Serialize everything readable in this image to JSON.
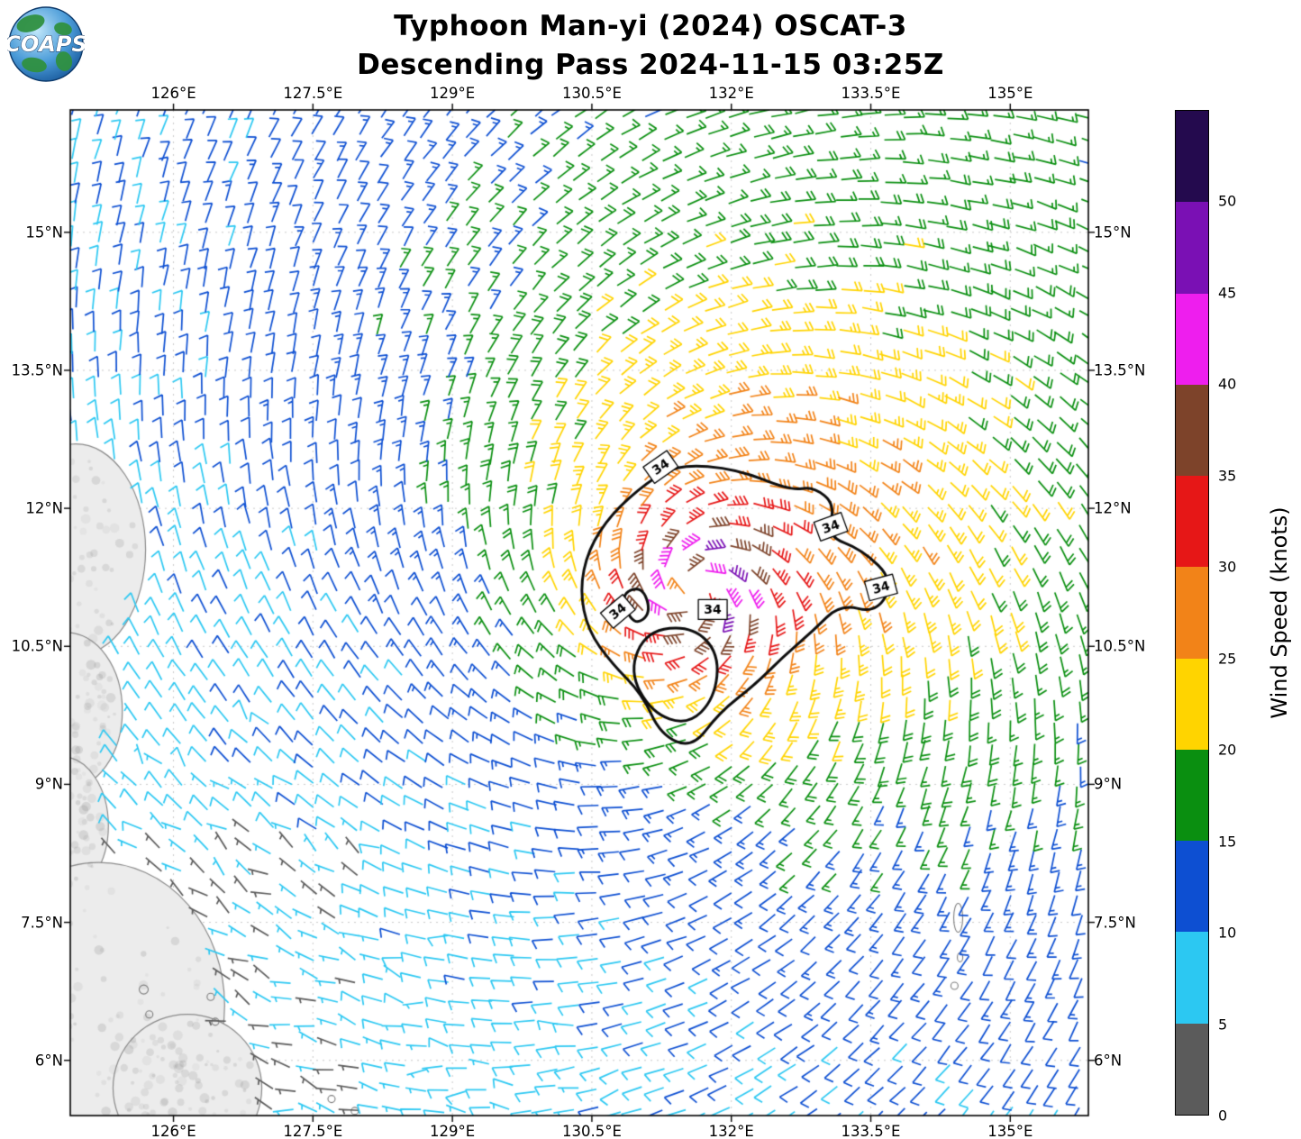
{
  "logo": {
    "text": "COAPS"
  },
  "title": {
    "line1": "Typhoon Man-yi (2024) OSCAT-3",
    "line2": "Descending Pass 2024-11-15 03:25Z"
  },
  "chart_data": {
    "type": "scatter",
    "subtype": "wind-barb-vector-field-map",
    "title": "Typhoon Man-yi (2024) OSCAT-3 Descending Pass 2024-11-15 03:25Z",
    "x_axis": {
      "tick_labels": [
        "126°E",
        "127.5°E",
        "129°E",
        "130.5°E",
        "132°E",
        "133.5°E",
        "135°E"
      ],
      "tick_values": [
        126,
        127.5,
        129,
        130.5,
        132,
        133.5,
        135
      ],
      "range": [
        124.89,
        135.84
      ],
      "grid": true
    },
    "y_axis": {
      "tick_labels": [
        "6°N",
        "7.5°N",
        "9°N",
        "10.5°N",
        "12°N",
        "13.5°N",
        "15°N"
      ],
      "tick_values": [
        6,
        7.5,
        9,
        10.5,
        12,
        13.5,
        15
      ],
      "range": [
        5.4,
        16.33
      ],
      "grid": true
    },
    "colorbar": {
      "label": "Wind Speed (knots)",
      "tick_labels": [
        "0",
        "5",
        "10",
        "15",
        "20",
        "25",
        "30",
        "35",
        "40",
        "45",
        "50"
      ],
      "tick_values": [
        0,
        5,
        10,
        15,
        20,
        25,
        30,
        35,
        40,
        45,
        50
      ],
      "bin_size_kt": 5,
      "value_max_kt": 55,
      "colors_bottom_to_top": [
        "#5b5b5b",
        "#2cc8f2",
        "#0d4fd2",
        "#0a8f10",
        "#ffd400",
        "#f28318",
        "#e61717",
        "#7d432a",
        "#ee1eee",
        "#7a10b4",
        "#240a4e"
      ]
    },
    "wind_field_model": {
      "rotation": "cyclonic",
      "center_lon": 131.6,
      "center_lat": 11.1,
      "vmax_kt": 46,
      "rmax_deg": 0.4,
      "inner_exp": 0.35,
      "decay_exp": 0.5,
      "inflow_deg": 22,
      "asym_amp": 0.35,
      "asym_dir_deg": 45,
      "grid_spacing_deg": 0.235,
      "calm_region": {
        "lon_max": 128,
        "lat_max": 8.5,
        "factor": 0.62
      }
    },
    "contours": {
      "label": "34",
      "value_kt": 34,
      "paths_lonlat": [
        [
          [
            131.43,
            12.48
          ],
          [
            132.06,
            12.43
          ],
          [
            132.64,
            12.19
          ],
          [
            132.88,
            12.24
          ],
          [
            133.12,
            12.04
          ],
          [
            133.02,
            11.7
          ],
          [
            133.41,
            11.55
          ],
          [
            133.75,
            11.21
          ],
          [
            133.56,
            10.86
          ],
          [
            133.17,
            10.96
          ],
          [
            132.88,
            10.67
          ],
          [
            132.54,
            10.37
          ],
          [
            132.25,
            10.08
          ],
          [
            131.87,
            9.78
          ],
          [
            131.58,
            9.39
          ],
          [
            131.24,
            9.54
          ],
          [
            131.04,
            9.98
          ],
          [
            130.71,
            10.32
          ],
          [
            130.46,
            10.67
          ],
          [
            130.37,
            11.11
          ],
          [
            130.46,
            11.55
          ],
          [
            130.71,
            11.94
          ],
          [
            131.09,
            12.28
          ]
        ],
        [
          [
            131.09,
            10.67
          ],
          [
            131.58,
            10.72
          ],
          [
            131.87,
            10.42
          ],
          [
            131.82,
            9.93
          ],
          [
            131.53,
            9.64
          ],
          [
            131.14,
            9.78
          ],
          [
            130.9,
            10.23
          ]
        ],
        [
          [
            130.8,
            11.06
          ],
          [
            131.04,
            11.16
          ],
          [
            131.14,
            10.86
          ],
          [
            130.95,
            10.72
          ]
        ]
      ],
      "label_points": [
        {
          "lon": 131.24,
          "lat": 12.45,
          "rot": -35
        },
        {
          "lon": 133.07,
          "lat": 11.8,
          "rot": -20
        },
        {
          "lon": 133.61,
          "lat": 11.14,
          "rot": -15
        },
        {
          "lon": 130.78,
          "lat": 10.88,
          "rot": -40
        },
        {
          "lon": 131.8,
          "lat": 10.9,
          "rot": 0
        }
      ]
    },
    "land_ellipses_lonlat": [
      [
        124.95,
        11.55,
        0.75,
        1.15
      ],
      [
        124.85,
        9.8,
        0.6,
        0.85
      ],
      [
        124.8,
        8.55,
        0.5,
        0.75
      ],
      [
        125.2,
        6.6,
        1.35,
        1.55
      ],
      [
        126.15,
        5.7,
        0.8,
        0.8
      ]
    ],
    "islet_markers": [
      [
        125.68,
        6.77,
        5,
        5
      ],
      [
        125.74,
        6.5,
        4,
        4
      ],
      [
        126.4,
        6.69,
        4,
        4
      ],
      [
        126.45,
        6.42,
        4,
        4
      ],
      [
        127.7,
        5.58,
        4,
        4
      ],
      [
        127.95,
        5.45,
        4,
        4
      ],
      [
        134.4,
        6.81,
        4,
        4
      ],
      [
        134.44,
        7.55,
        5,
        16
      ],
      [
        134.46,
        7.12,
        3,
        5
      ]
    ]
  }
}
